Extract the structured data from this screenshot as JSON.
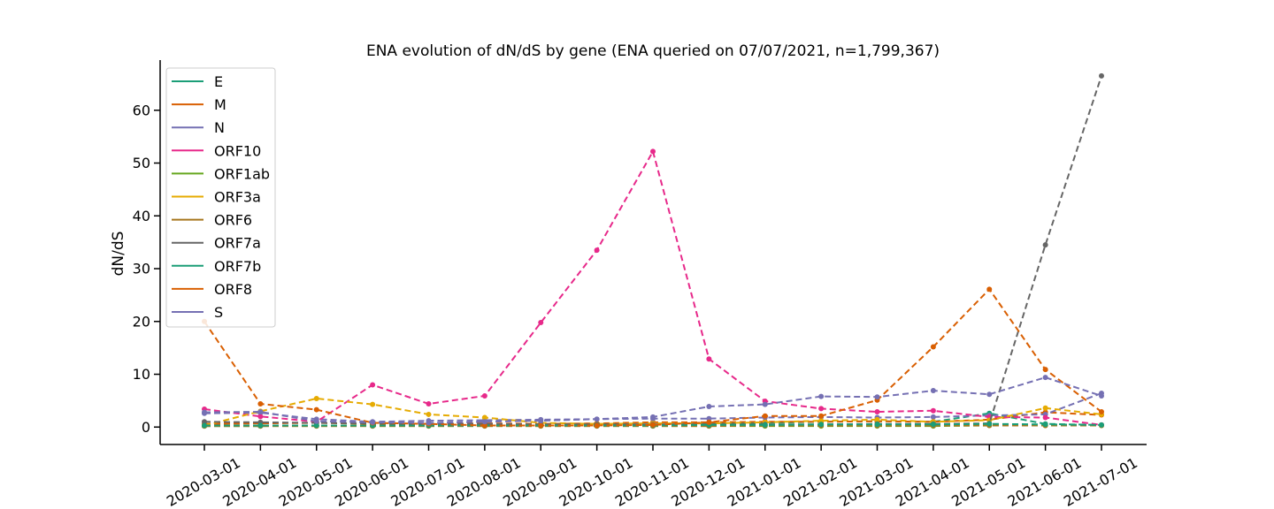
{
  "chart_data": {
    "type": "line",
    "title": "ENA evolution of dN/dS by gene (ENA queried on 07/07/2021, n=1,799,367)",
    "xlabel": "",
    "ylabel": "dN/dS",
    "ylim": [
      -3.3,
      69.5
    ],
    "yticks": [
      0,
      10,
      20,
      30,
      40,
      50,
      60
    ],
    "grid": false,
    "legend_position": "top-left",
    "line_style": "dashed",
    "categories": [
      "2020-03-01",
      "2020-04-01",
      "2020-05-01",
      "2020-06-01",
      "2020-07-01",
      "2020-08-01",
      "2020-09-01",
      "2020-10-01",
      "2020-11-01",
      "2020-12-01",
      "2021-01-01",
      "2021-02-01",
      "2021-03-01",
      "2021-04-01",
      "2021-05-01",
      "2021-06-01",
      "2021-07-01"
    ],
    "series": [
      {
        "name": "E",
        "color": "#1b9e77",
        "values": [
          0.2,
          0.2,
          0.3,
          0.2,
          0.3,
          0.3,
          0.4,
          0.4,
          0.5,
          0.6,
          0.8,
          1.0,
          1.1,
          1.0,
          2.6,
          0.6,
          0.4
        ]
      },
      {
        "name": "M",
        "color": "#d95f02",
        "values": [
          0.6,
          0.7,
          0.8,
          0.6,
          0.6,
          0.7,
          0.6,
          0.7,
          0.9,
          0.9,
          1.0,
          1.0,
          1.1,
          1.0,
          1.4,
          2.8,
          2.3
        ]
      },
      {
        "name": "N",
        "color": "#7570b3",
        "values": [
          2.6,
          2.7,
          1.5,
          1.0,
          1.2,
          1.3,
          1.4,
          1.5,
          1.6,
          1.6,
          1.8,
          1.9,
          1.8,
          1.9,
          2.2,
          2.4,
          6.4
        ]
      },
      {
        "name": "ORF10",
        "color": "#e7298a",
        "values": [
          3.4,
          2.0,
          1.0,
          8.0,
          4.4,
          5.9,
          19.8,
          33.5,
          52.2,
          12.9,
          4.9,
          3.5,
          2.9,
          3.1,
          1.9,
          1.8,
          0.4
        ]
      },
      {
        "name": "ORF1ab",
        "color": "#66a61e",
        "values": [
          0.2,
          0.2,
          0.2,
          0.2,
          0.2,
          0.2,
          0.2,
          0.2,
          0.2,
          0.2,
          0.2,
          0.2,
          0.2,
          0.2,
          0.3,
          0.3,
          0.3
        ]
      },
      {
        "name": "ORF3a",
        "color": "#e6ab02",
        "values": [
          0.3,
          3.0,
          5.4,
          4.3,
          2.4,
          1.8,
          0.8,
          0.6,
          0.7,
          0.7,
          0.9,
          1.2,
          1.4,
          1.0,
          1.3,
          3.6,
          2.4
        ]
      },
      {
        "name": "ORF6",
        "color": "#a6761d",
        "values": [
          0.2,
          0.2,
          0.2,
          0.2,
          0.2,
          0.2,
          0.2,
          0.2,
          0.2,
          0.2,
          0.3,
          0.3,
          0.3,
          0.3,
          0.3,
          0.3,
          0.3
        ]
      },
      {
        "name": "ORF7a",
        "color": "#666666",
        "values": [
          1.0,
          0.9,
          0.8,
          0.7,
          0.6,
          0.6,
          0.5,
          0.5,
          0.5,
          0.5,
          0.5,
          0.5,
          0.6,
          0.6,
          0.7,
          34.5,
          66.5
        ]
      },
      {
        "name": "ORF7b",
        "color": "#1b9e77",
        "values": [
          0.3,
          0.3,
          0.3,
          0.3,
          0.3,
          0.3,
          0.3,
          0.3,
          0.3,
          0.4,
          0.4,
          0.5,
          0.5,
          0.5,
          0.6,
          0.5,
          0.4
        ]
      },
      {
        "name": "ORF8",
        "color": "#d95f02",
        "values": [
          20.0,
          4.4,
          3.3,
          0.8,
          0.6,
          0.3,
          0.3,
          0.3,
          0.4,
          0.9,
          2.1,
          2.1,
          5.1,
          15.2,
          26.1,
          10.9,
          2.9
        ]
      },
      {
        "name": "S",
        "color": "#7570b3",
        "values": [
          2.8,
          2.9,
          1.1,
          0.9,
          0.8,
          1.0,
          1.2,
          1.5,
          1.9,
          3.9,
          4.3,
          5.8,
          5.7,
          6.9,
          6.2,
          9.4,
          5.9
        ]
      }
    ]
  }
}
